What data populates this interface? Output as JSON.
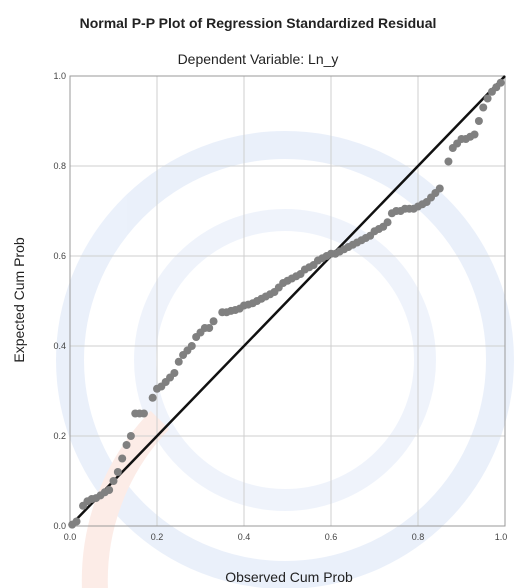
{
  "chart_data": {
    "type": "scatter",
    "title": "Normal P-P Plot of Regression Standardized Residual",
    "subtitle": "Dependent Variable: Ln_y",
    "xlabel": "Observed Cum Prob",
    "ylabel": "Expected Cum Prob",
    "xlim": [
      0,
      1
    ],
    "ylim": [
      0,
      1
    ],
    "x_ticks": [
      "0.0",
      "0.2",
      "0.4",
      "0.6",
      "0.8",
      "1.0"
    ],
    "y_ticks": [
      "0.0",
      "0.2",
      "0.4",
      "0.6",
      "0.8",
      "1.0"
    ],
    "grid": true,
    "reference_line": {
      "from": [
        0,
        0
      ],
      "to": [
        1,
        1
      ],
      "color": "#111111"
    },
    "point_color": "#808080",
    "points": [
      [
        0.005,
        0.003
      ],
      [
        0.015,
        0.01
      ],
      [
        0.03,
        0.045
      ],
      [
        0.04,
        0.055
      ],
      [
        0.05,
        0.06
      ],
      [
        0.06,
        0.062
      ],
      [
        0.07,
        0.068
      ],
      [
        0.08,
        0.075
      ],
      [
        0.09,
        0.08
      ],
      [
        0.1,
        0.1
      ],
      [
        0.11,
        0.12
      ],
      [
        0.12,
        0.15
      ],
      [
        0.13,
        0.18
      ],
      [
        0.14,
        0.2
      ],
      [
        0.15,
        0.25
      ],
      [
        0.16,
        0.25
      ],
      [
        0.17,
        0.25
      ],
      [
        0.19,
        0.285
      ],
      [
        0.2,
        0.305
      ],
      [
        0.21,
        0.31
      ],
      [
        0.22,
        0.32
      ],
      [
        0.23,
        0.33
      ],
      [
        0.24,
        0.34
      ],
      [
        0.25,
        0.365
      ],
      [
        0.26,
        0.38
      ],
      [
        0.27,
        0.39
      ],
      [
        0.28,
        0.4
      ],
      [
        0.29,
        0.42
      ],
      [
        0.3,
        0.43
      ],
      [
        0.31,
        0.44
      ],
      [
        0.32,
        0.44
      ],
      [
        0.33,
        0.455
      ],
      [
        0.35,
        0.475
      ],
      [
        0.36,
        0.475
      ],
      [
        0.37,
        0.478
      ],
      [
        0.38,
        0.48
      ],
      [
        0.39,
        0.483
      ],
      [
        0.4,
        0.49
      ],
      [
        0.41,
        0.492
      ],
      [
        0.42,
        0.495
      ],
      [
        0.43,
        0.5
      ],
      [
        0.44,
        0.505
      ],
      [
        0.45,
        0.51
      ],
      [
        0.46,
        0.515
      ],
      [
        0.47,
        0.52
      ],
      [
        0.48,
        0.53
      ],
      [
        0.49,
        0.54
      ],
      [
        0.5,
        0.545
      ],
      [
        0.51,
        0.55
      ],
      [
        0.52,
        0.555
      ],
      [
        0.53,
        0.56
      ],
      [
        0.54,
        0.57
      ],
      [
        0.55,
        0.575
      ],
      [
        0.56,
        0.58
      ],
      [
        0.57,
        0.59
      ],
      [
        0.58,
        0.595
      ],
      [
        0.59,
        0.6
      ],
      [
        0.6,
        0.605
      ],
      [
        0.61,
        0.605
      ],
      [
        0.62,
        0.61
      ],
      [
        0.63,
        0.615
      ],
      [
        0.64,
        0.62
      ],
      [
        0.65,
        0.625
      ],
      [
        0.66,
        0.63
      ],
      [
        0.67,
        0.635
      ],
      [
        0.68,
        0.64
      ],
      [
        0.69,
        0.645
      ],
      [
        0.7,
        0.655
      ],
      [
        0.71,
        0.66
      ],
      [
        0.72,
        0.665
      ],
      [
        0.73,
        0.675
      ],
      [
        0.74,
        0.695
      ],
      [
        0.75,
        0.7
      ],
      [
        0.76,
        0.7
      ],
      [
        0.77,
        0.705
      ],
      [
        0.78,
        0.705
      ],
      [
        0.79,
        0.705
      ],
      [
        0.8,
        0.71
      ],
      [
        0.81,
        0.715
      ],
      [
        0.82,
        0.72
      ],
      [
        0.83,
        0.73
      ],
      [
        0.84,
        0.74
      ],
      [
        0.85,
        0.75
      ],
      [
        0.87,
        0.81
      ],
      [
        0.88,
        0.84
      ],
      [
        0.89,
        0.85
      ],
      [
        0.9,
        0.86
      ],
      [
        0.91,
        0.86
      ],
      [
        0.92,
        0.865
      ],
      [
        0.93,
        0.87
      ],
      [
        0.94,
        0.9
      ],
      [
        0.95,
        0.93
      ],
      [
        0.96,
        0.95
      ],
      [
        0.97,
        0.965
      ],
      [
        0.98,
        0.975
      ],
      [
        0.99,
        0.985
      ]
    ]
  }
}
